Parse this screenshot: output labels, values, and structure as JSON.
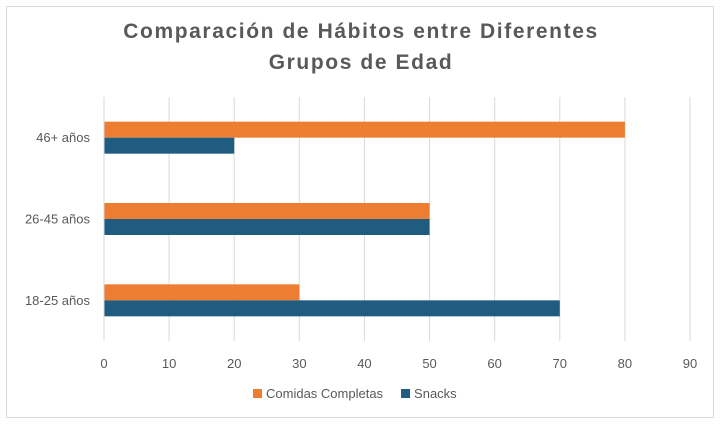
{
  "chart_data": {
    "type": "bar",
    "orientation": "horizontal",
    "title_lines": [
      "Comparación de Hábitos entre Diferentes",
      "Grupos de Edad"
    ],
    "categories": [
      "18-25 años",
      "26-45 años",
      "46+ años"
    ],
    "series": [
      {
        "name": "Comidas Completas",
        "values": [
          30,
          50,
          80
        ],
        "color": "#ED7D31"
      },
      {
        "name": "Snacks",
        "values": [
          70,
          50,
          20
        ],
        "color": "#1F5C7F"
      }
    ],
    "x_ticks": [
      "0",
      "10",
      "20",
      "30",
      "40",
      "50",
      "60",
      "70",
      "80",
      "90"
    ],
    "xlim": [
      0,
      90
    ],
    "grid": true,
    "legend_position": "bottom"
  }
}
